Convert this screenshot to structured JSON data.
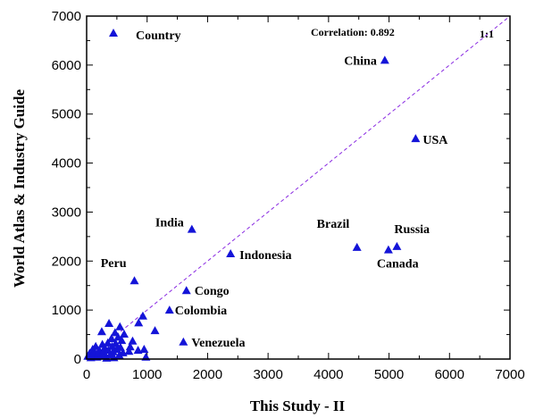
{
  "chart_data": {
    "type": "scatter",
    "xlabel": "This Study - II",
    "ylabel": "World Atlas & Industry Guide",
    "xlim": [
      0,
      7000
    ],
    "ylim": [
      0,
      7000
    ],
    "x_ticks": [
      "0",
      "1000",
      "2000",
      "3000",
      "4000",
      "5000",
      "6000",
      "7000"
    ],
    "y_ticks": [
      "0",
      "1000",
      "2000",
      "3000",
      "4000",
      "5000",
      "6000",
      "7000"
    ],
    "tick_step": 1000,
    "minor_step": 500,
    "legend": {
      "label": "Country",
      "placement": "top-left"
    },
    "correlation_label": "Correlation: 0.892",
    "reference_line": {
      "label": "1:1",
      "from": [
        0,
        0
      ],
      "to": [
        7000,
        7000
      ]
    },
    "colors": {
      "marker": "#1414d8",
      "reference_line": "#8a2be2",
      "axes": "#000000"
    },
    "labeled_points": [
      {
        "name": "China",
        "x": 4930,
        "y": 6100
      },
      {
        "name": "USA",
        "x": 5440,
        "y": 4500
      },
      {
        "name": "Russia",
        "x": 5130,
        "y": 2300
      },
      {
        "name": "Canada",
        "x": 4990,
        "y": 2230
      },
      {
        "name": "Brazil",
        "x": 4470,
        "y": 2280
      },
      {
        "name": "India",
        "x": 1740,
        "y": 2650
      },
      {
        "name": "Indonesia",
        "x": 2380,
        "y": 2150
      },
      {
        "name": "Peru",
        "x": 790,
        "y": 1600
      },
      {
        "name": "Congo",
        "x": 1650,
        "y": 1400
      },
      {
        "name": "Colombia",
        "x": 1370,
        "y": 1000
      },
      {
        "name": "Venezuela",
        "x": 1600,
        "y": 350
      }
    ],
    "other_points": [
      [
        20,
        60
      ],
      [
        50,
        120
      ],
      [
        70,
        30
      ],
      [
        100,
        200
      ],
      [
        110,
        80
      ],
      [
        130,
        150
      ],
      [
        150,
        260
      ],
      [
        170,
        40
      ],
      [
        190,
        110
      ],
      [
        210,
        180
      ],
      [
        230,
        60
      ],
      [
        250,
        560
      ],
      [
        260,
        300
      ],
      [
        280,
        140
      ],
      [
        300,
        230
      ],
      [
        310,
        70
      ],
      [
        330,
        20
      ],
      [
        350,
        330
      ],
      [
        360,
        180
      ],
      [
        370,
        730
      ],
      [
        390,
        90
      ],
      [
        410,
        420
      ],
      [
        420,
        260
      ],
      [
        440,
        150
      ],
      [
        450,
        30
      ],
      [
        470,
        540
      ],
      [
        480,
        320
      ],
      [
        500,
        200
      ],
      [
        520,
        450
      ],
      [
        540,
        80
      ],
      [
        550,
        660
      ],
      [
        560,
        240
      ],
      [
        580,
        380
      ],
      [
        600,
        130
      ],
      [
        620,
        510
      ],
      [
        700,
        160
      ],
      [
        720,
        250
      ],
      [
        760,
        370
      ],
      [
        850,
        180
      ],
      [
        860,
        740
      ],
      [
        930,
        880
      ],
      [
        950,
        200
      ],
      [
        980,
        40
      ],
      [
        1130,
        580
      ]
    ]
  }
}
